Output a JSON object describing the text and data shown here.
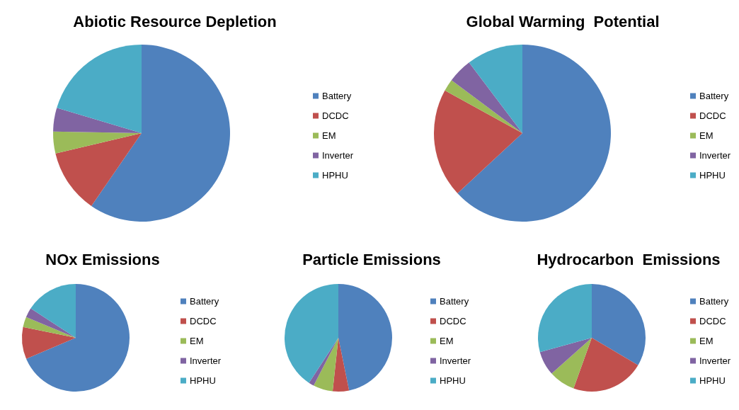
{
  "chart_data": [
    {
      "type": "pie",
      "title": "Abiotic Resource Depletion",
      "categories": [
        "Battery",
        "DCDC",
        "EM",
        "Inverter",
        "HPHU"
      ],
      "values": [
        59.6,
        11.7,
        4.0,
        4.3,
        20.4
      ],
      "colors": [
        "#4f81bd",
        "#c0504d",
        "#9bbb59",
        "#8064a2",
        "#4bacc6"
      ],
      "legend": "right"
    },
    {
      "type": "pie",
      "title": "Global Warming  Potential",
      "categories": [
        "Battery",
        "DCDC",
        "EM",
        "Inverter",
        "HPHU"
      ],
      "values": [
        63.1,
        19.9,
        2.2,
        4.5,
        10.3
      ],
      "colors": [
        "#4f81bd",
        "#c0504d",
        "#9bbb59",
        "#8064a2",
        "#4bacc6"
      ],
      "legend": "right"
    },
    {
      "type": "pie",
      "title": "NOx Emissions",
      "categories": [
        "Battery",
        "DCDC",
        "EM",
        "Inverter",
        "HPHU"
      ],
      "values": [
        68.6,
        9.6,
        3.1,
        2.9,
        15.8
      ],
      "colors": [
        "#4f81bd",
        "#c0504d",
        "#9bbb59",
        "#8064a2",
        "#4bacc6"
      ],
      "legend": "right"
    },
    {
      "type": "pie",
      "title": "Particle Emissions",
      "categories": [
        "Battery",
        "DCDC",
        "EM",
        "Inverter",
        "HPHU"
      ],
      "values": [
        46.8,
        4.9,
        5.9,
        1.6,
        40.8
      ],
      "colors": [
        "#4f81bd",
        "#c0504d",
        "#9bbb59",
        "#8064a2",
        "#4bacc6"
      ],
      "legend": "right"
    },
    {
      "type": "pie",
      "title": "Hydrocarbon  Emissions",
      "categories": [
        "Battery",
        "DCDC",
        "EM",
        "Inverter",
        "HPHU"
      ],
      "values": [
        33.5,
        22.0,
        7.9,
        7.3,
        29.3
      ],
      "colors": [
        "#4f81bd",
        "#c0504d",
        "#9bbb59",
        "#8064a2",
        "#4bacc6"
      ],
      "legend": "right"
    }
  ]
}
